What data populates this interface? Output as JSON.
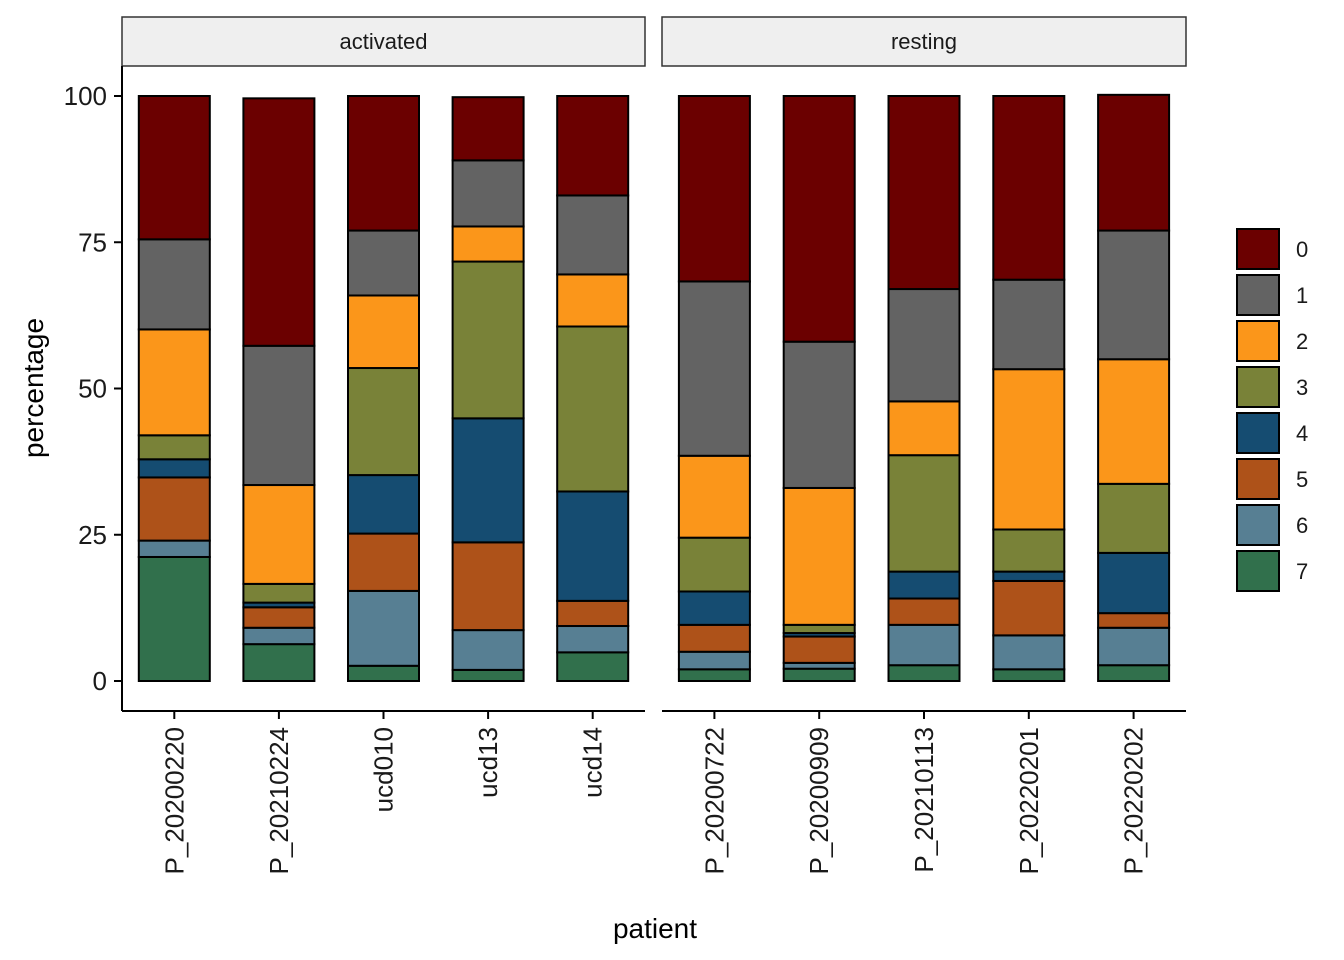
{
  "chart_data": {
    "type": "bar",
    "stacked": true,
    "xlabel": "patient",
    "ylabel": "percentage",
    "ylim": [
      0,
      100
    ],
    "yticks": [
      0,
      25,
      50,
      75,
      100
    ],
    "grid": false,
    "legend_placement": "right",
    "stack_order_bottom_to_top": [
      "7",
      "6",
      "5",
      "4",
      "3",
      "2",
      "1",
      "0"
    ],
    "legend": [
      {
        "label": "0",
        "color": "#6b0000"
      },
      {
        "label": "1",
        "color": "#636363"
      },
      {
        "label": "2",
        "color": "#fb961a"
      },
      {
        "label": "3",
        "color": "#798238"
      },
      {
        "label": "4",
        "color": "#154c71"
      },
      {
        "label": "5",
        "color": "#ae5219"
      },
      {
        "label": "6",
        "color": "#577f93"
      },
      {
        "label": "7",
        "color": "#31704c"
      }
    ],
    "panels": [
      {
        "label": "activated",
        "categories": [
          "P_20200220",
          "P_20210224",
          "ucd010",
          "ucd13",
          "ucd14"
        ],
        "series": [
          {
            "name": "0",
            "values": [
              24.5,
              42.3,
              23.0,
              10.8,
              17.0
            ]
          },
          {
            "name": "1",
            "values": [
              15.4,
              23.8,
              11.1,
              11.3,
              13.5
            ]
          },
          {
            "name": "2",
            "values": [
              18.1,
              16.9,
              12.4,
              6.0,
              8.9
            ]
          },
          {
            "name": "3",
            "values": [
              4.1,
              3.2,
              18.3,
              26.8,
              28.2
            ]
          },
          {
            "name": "4",
            "values": [
              3.1,
              0.8,
              10.0,
              21.2,
              18.7
            ]
          },
          {
            "name": "5",
            "values": [
              10.8,
              3.5,
              9.8,
              15.0,
              4.3
            ]
          },
          {
            "name": "6",
            "values": [
              2.8,
              2.8,
              12.8,
              6.8,
              4.5
            ]
          },
          {
            "name": "7",
            "values": [
              21.2,
              6.3,
              2.6,
              1.9,
              4.9
            ]
          }
        ]
      },
      {
        "label": "resting",
        "categories": [
          "P_20200722",
          "P_20200909",
          "P_20210113",
          "P_20220201",
          "P_20220202"
        ],
        "series": [
          {
            "name": "0",
            "values": [
              31.7,
              42.0,
              33.0,
              31.4,
              23.2
            ]
          },
          {
            "name": "1",
            "values": [
              29.8,
              25.0,
              19.2,
              15.3,
              22.0
            ]
          },
          {
            "name": "2",
            "values": [
              14.0,
              23.4,
              9.2,
              27.4,
              21.3
            ]
          },
          {
            "name": "3",
            "values": [
              9.2,
              1.4,
              19.9,
              7.2,
              11.8
            ]
          },
          {
            "name": "4",
            "values": [
              5.7,
              0.6,
              4.6,
              1.6,
              10.3
            ]
          },
          {
            "name": "5",
            "values": [
              4.6,
              4.5,
              4.5,
              9.3,
              2.5
            ]
          },
          {
            "name": "6",
            "values": [
              3.0,
              1.0,
              6.9,
              5.8,
              6.4
            ]
          },
          {
            "name": "7",
            "values": [
              2.0,
              2.1,
              2.7,
              2.0,
              2.7
            ]
          }
        ]
      }
    ]
  }
}
